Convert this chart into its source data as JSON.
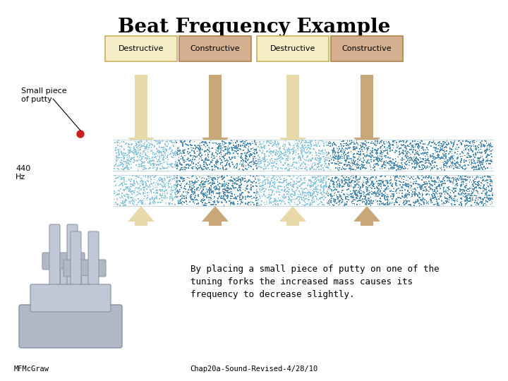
{
  "title": "Beat Frequency Example",
  "title_fontsize": 20,
  "bg_color": "#ffffff",
  "arrow_down_color_light": "#e8d9a8",
  "arrow_down_color_dark": "#c8a878",
  "arrow_up_color_light": "#e8d9a8",
  "arrow_up_color_dark": "#c8a878",
  "box_facecolor_light": "#f5ecc8",
  "box_facecolor_dark": "#d4b090",
  "box_edge_light": "#c8b060",
  "box_edge_dark": "#b08050",
  "wave_color_dense": "#5090b8",
  "wave_color_sparse": "#90c8e0",
  "labels_down": [
    "Destructive",
    "Constructive",
    "Destructive",
    "Constructive"
  ],
  "body_text_line1": "By placing a small piece of putty on one of the",
  "body_text_line2": "tuning forks the increased mass causes its",
  "body_text_line3": "frequency to decrease slightly.",
  "footer_left": "MFMcGraw",
  "footer_right": "Chap20a-Sound-Revised-4/28/10"
}
